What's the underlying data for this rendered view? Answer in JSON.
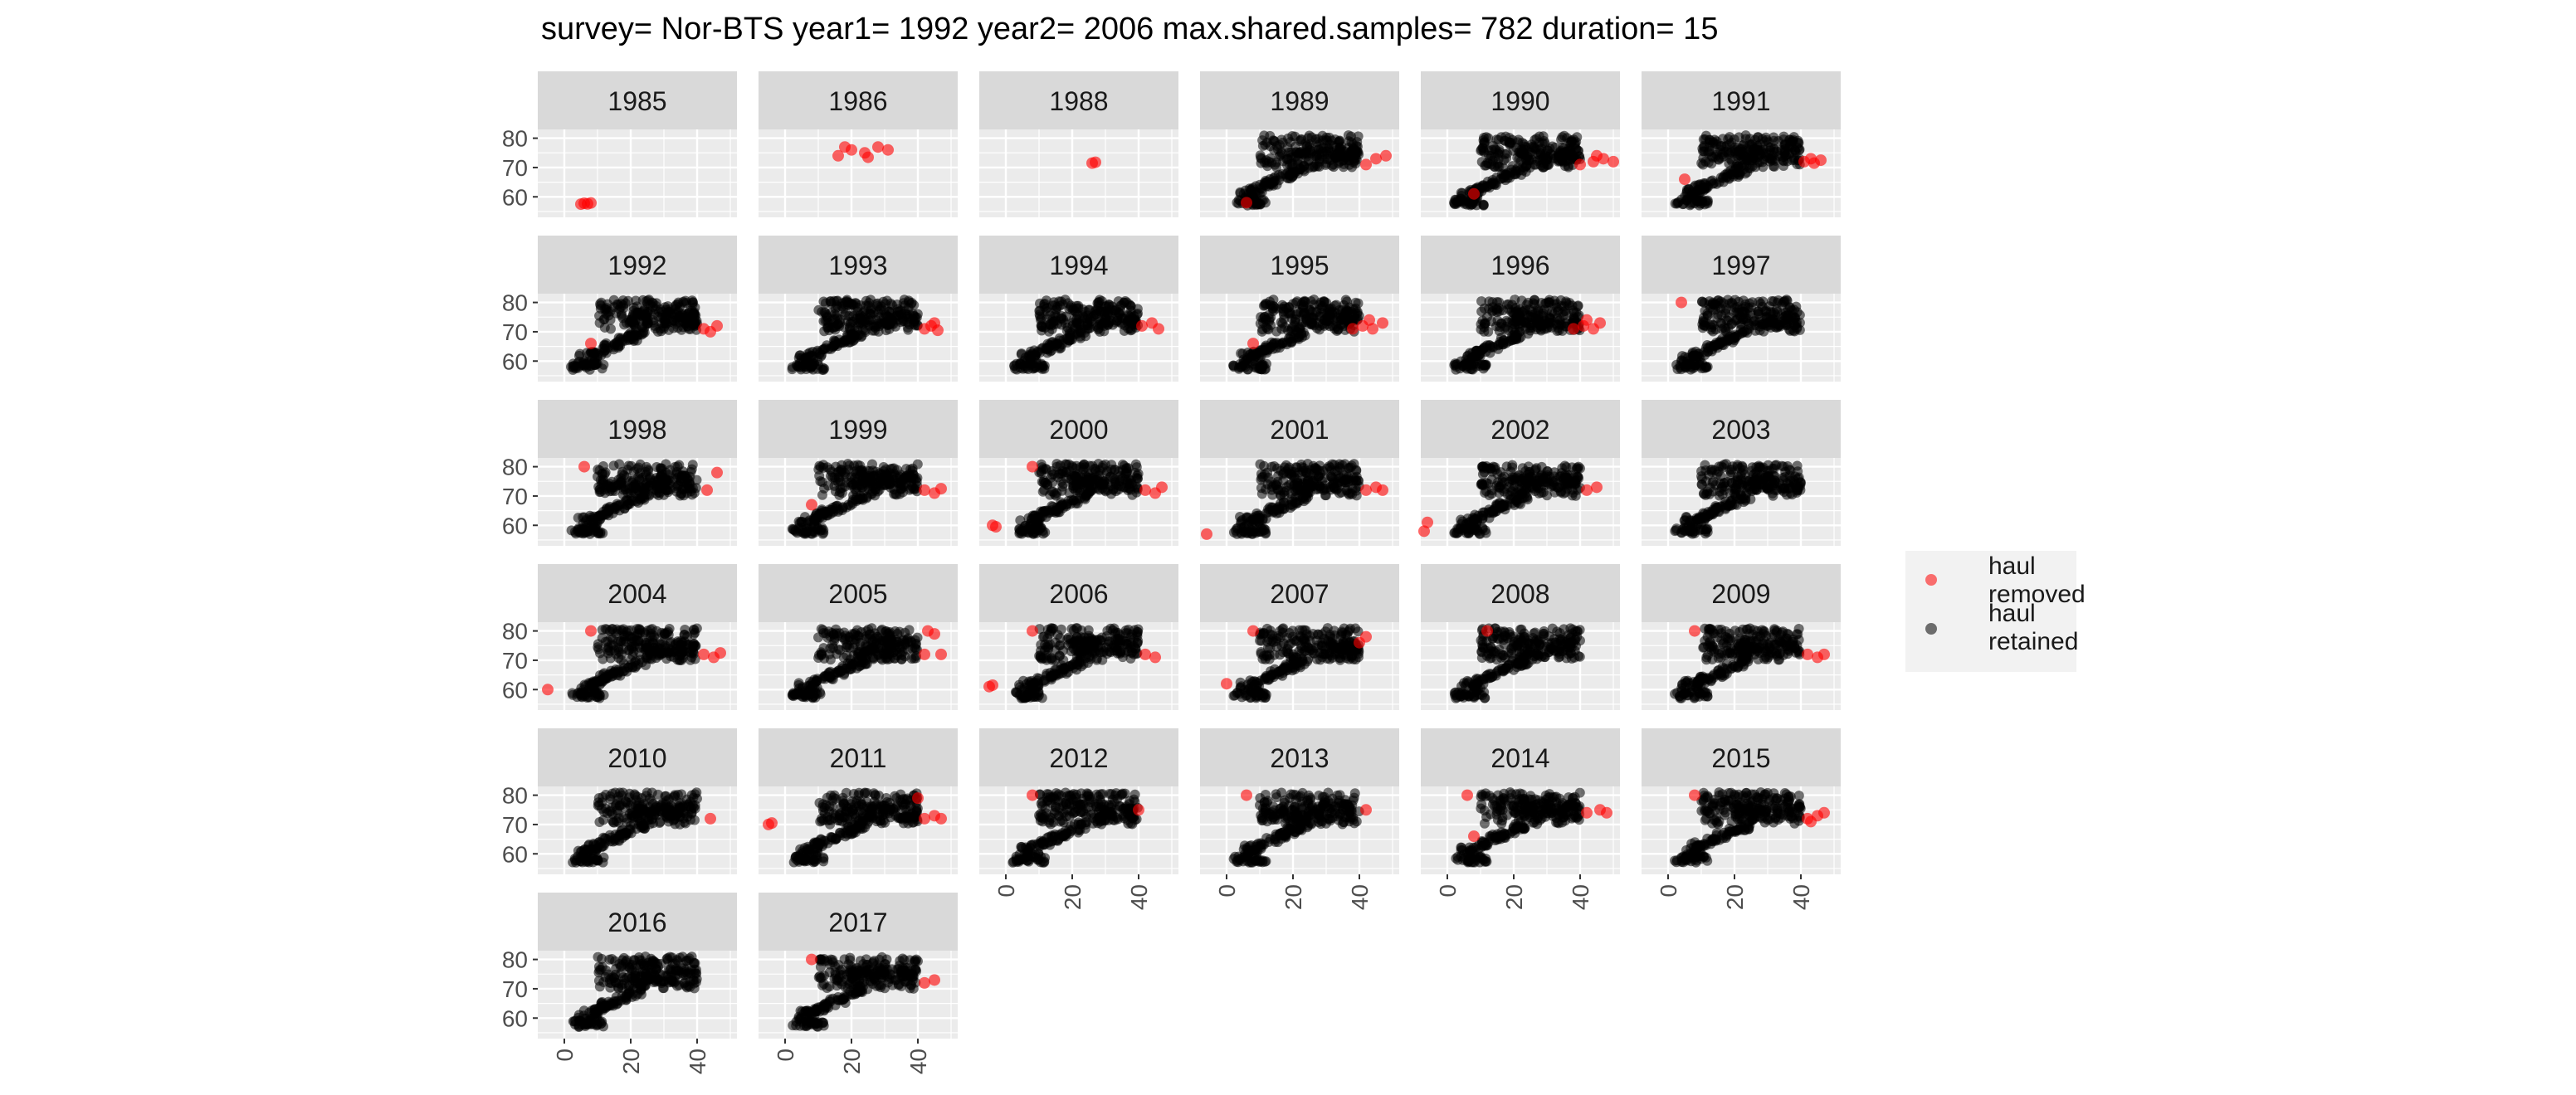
{
  "title": "survey= Nor-BTS year1= 1992 year2= 2006 max.shared.samples= 782 duration= 15",
  "colors": {
    "panel_bg": "#ebebeb",
    "strip_bg": "#d9d9d9",
    "grid": "#ffffff",
    "removed": "#ff0000",
    "retained": "#000000"
  },
  "legend": {
    "items": [
      {
        "line1": "haul",
        "line2": "removed",
        "color": "#ff0000"
      },
      {
        "line1": "haul",
        "line2": "retained",
        "color": "#000000"
      }
    ]
  },
  "chart_data": {
    "type": "scatter",
    "x_ticks": [
      "0",
      "20",
      "40"
    ],
    "y_ticks": [
      "60",
      "70",
      "80"
    ],
    "xlim": [
      -8,
      52
    ],
    "ylim": [
      53,
      83
    ],
    "grid": true,
    "legend_position": "right",
    "series": [
      {
        "name": "haul removed",
        "color": "#ff0000"
      },
      {
        "name": "haul retained",
        "color": "#000000"
      }
    ],
    "panels": [
      {
        "year": "1985",
        "retained": false,
        "removed_points": [
          [
            5,
            57.5
          ],
          [
            6,
            57.8
          ],
          [
            7,
            57.6
          ],
          [
            8,
            57.9
          ]
        ]
      },
      {
        "year": "1986",
        "retained": false,
        "removed_points": [
          [
            16,
            74
          ],
          [
            20,
            76
          ],
          [
            24,
            75
          ],
          [
            28,
            77
          ],
          [
            31,
            76
          ],
          [
            18,
            77
          ],
          [
            25,
            73.5
          ]
        ]
      },
      {
        "year": "1988",
        "retained": false,
        "removed_points": [
          [
            26,
            71.5
          ],
          [
            27,
            71.8
          ]
        ]
      },
      {
        "year": "1989",
        "retained": true,
        "removed_points": [
          [
            45,
            73
          ],
          [
            48,
            74
          ],
          [
            42,
            71
          ],
          [
            6,
            58
          ]
        ]
      },
      {
        "year": "1990",
        "retained": true,
        "removed_points": [
          [
            40,
            71
          ],
          [
            44,
            72
          ],
          [
            47,
            73
          ],
          [
            50,
            72
          ],
          [
            45,
            74
          ],
          [
            8,
            61
          ]
        ]
      },
      {
        "year": "1991",
        "retained": true,
        "removed_points": [
          [
            41,
            72
          ],
          [
            44,
            71.5
          ],
          [
            46,
            72.5
          ],
          [
            5,
            66
          ],
          [
            43,
            73
          ]
        ]
      },
      {
        "year": "1992",
        "retained": true,
        "removed_points": [
          [
            42,
            71
          ],
          [
            44,
            70
          ],
          [
            46,
            72
          ],
          [
            8,
            66
          ]
        ]
      },
      {
        "year": "1993",
        "retained": true,
        "removed_points": [
          [
            42,
            71
          ],
          [
            44,
            72
          ],
          [
            46,
            70.5
          ],
          [
            45,
            73
          ]
        ]
      },
      {
        "year": "1994",
        "retained": true,
        "removed_points": [
          [
            41,
            72
          ],
          [
            44,
            73
          ],
          [
            46,
            71
          ]
        ]
      },
      {
        "year": "1995",
        "retained": true,
        "removed_points": [
          [
            38,
            71
          ],
          [
            41,
            72
          ],
          [
            44,
            71
          ],
          [
            47,
            73
          ],
          [
            43,
            74
          ],
          [
            8,
            66
          ]
        ]
      },
      {
        "year": "1996",
        "retained": true,
        "removed_points": [
          [
            38,
            71
          ],
          [
            41,
            72
          ],
          [
            44,
            71
          ],
          [
            46,
            73
          ],
          [
            42,
            74
          ]
        ]
      },
      {
        "year": "1997",
        "retained": true,
        "removed_points": [
          [
            4,
            80
          ]
        ]
      },
      {
        "year": "1998",
        "retained": true,
        "removed_points": [
          [
            6,
            80
          ],
          [
            46,
            78
          ],
          [
            43,
            72
          ]
        ]
      },
      {
        "year": "1999",
        "retained": true,
        "removed_points": [
          [
            42,
            72
          ],
          [
            45,
            71
          ],
          [
            47,
            72.5
          ],
          [
            8,
            67
          ]
        ]
      },
      {
        "year": "2000",
        "retained": true,
        "removed_points": [
          [
            42,
            72
          ],
          [
            45,
            71
          ],
          [
            47,
            73
          ],
          [
            8,
            80
          ],
          [
            -4,
            60
          ],
          [
            -3,
            59.5
          ]
        ]
      },
      {
        "year": "2001",
        "retained": true,
        "removed_points": [
          [
            42,
            72
          ],
          [
            45,
            73
          ],
          [
            47,
            72
          ],
          [
            -6,
            57
          ]
        ]
      },
      {
        "year": "2002",
        "retained": true,
        "removed_points": [
          [
            42,
            72
          ],
          [
            45,
            73
          ],
          [
            -6,
            61
          ],
          [
            -7,
            58
          ]
        ]
      },
      {
        "year": "2003",
        "retained": true,
        "removed_points": []
      },
      {
        "year": "2004",
        "retained": true,
        "removed_points": [
          [
            42,
            72
          ],
          [
            45,
            71
          ],
          [
            47,
            72.5
          ],
          [
            8,
            80
          ],
          [
            -5,
            60
          ]
        ]
      },
      {
        "year": "2005",
        "retained": true,
        "removed_points": [
          [
            42,
            72
          ],
          [
            45,
            79
          ],
          [
            47,
            72
          ],
          [
            43,
            80
          ]
        ]
      },
      {
        "year": "2006",
        "retained": true,
        "removed_points": [
          [
            42,
            72
          ],
          [
            45,
            71
          ],
          [
            8,
            80
          ],
          [
            -5,
            61
          ],
          [
            -4,
            61.5
          ]
        ]
      },
      {
        "year": "2007",
        "retained": true,
        "removed_points": [
          [
            8,
            80
          ],
          [
            42,
            78
          ],
          [
            40,
            76
          ],
          [
            0,
            62
          ]
        ]
      },
      {
        "year": "2008",
        "retained": true,
        "removed_points": [
          [
            12,
            80
          ]
        ]
      },
      {
        "year": "2009",
        "retained": true,
        "removed_points": [
          [
            42,
            72
          ],
          [
            45,
            71
          ],
          [
            47,
            72
          ],
          [
            8,
            80
          ]
        ]
      },
      {
        "year": "2010",
        "retained": true,
        "removed_points": [
          [
            44,
            72
          ]
        ]
      },
      {
        "year": "2011",
        "retained": true,
        "removed_points": [
          [
            42,
            72
          ],
          [
            45,
            73
          ],
          [
            47,
            72
          ],
          [
            40,
            79
          ],
          [
            -5,
            70
          ],
          [
            -4,
            70.5
          ]
        ]
      },
      {
        "year": "2012",
        "retained": true,
        "removed_points": [
          [
            8,
            80
          ],
          [
            40,
            75
          ]
        ]
      },
      {
        "year": "2013",
        "retained": true,
        "removed_points": [
          [
            6,
            80
          ],
          [
            42,
            75
          ]
        ]
      },
      {
        "year": "2014",
        "retained": true,
        "removed_points": [
          [
            42,
            74
          ],
          [
            46,
            75
          ],
          [
            48,
            74
          ],
          [
            8,
            66
          ],
          [
            6,
            80
          ]
        ]
      },
      {
        "year": "2015",
        "retained": true,
        "removed_points": [
          [
            42,
            72
          ],
          [
            45,
            73
          ],
          [
            47,
            74
          ],
          [
            43,
            71
          ],
          [
            8,
            80
          ]
        ]
      },
      {
        "year": "2016",
        "retained": true,
        "removed_points": []
      },
      {
        "year": "2017",
        "retained": true,
        "removed_points": [
          [
            42,
            72
          ],
          [
            45,
            73
          ],
          [
            8,
            80
          ]
        ]
      }
    ]
  }
}
